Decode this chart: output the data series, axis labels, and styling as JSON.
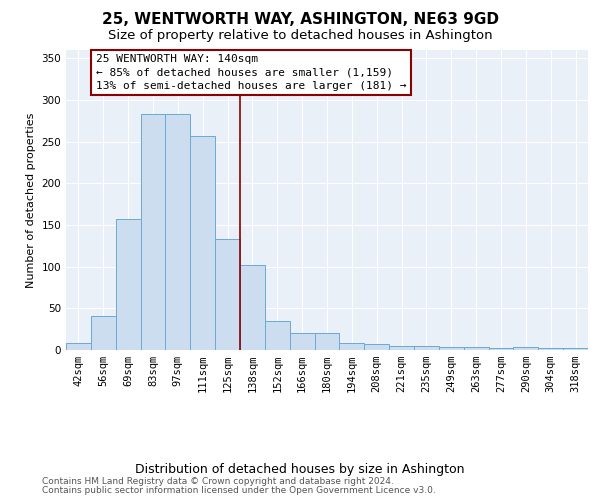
{
  "title": "25, WENTWORTH WAY, ASHINGTON, NE63 9GD",
  "subtitle": "Size of property relative to detached houses in Ashington",
  "xlabel": "Distribution of detached houses by size in Ashington",
  "ylabel": "Number of detached properties",
  "categories": [
    "42sqm",
    "56sqm",
    "69sqm",
    "83sqm",
    "97sqm",
    "111sqm",
    "125sqm",
    "138sqm",
    "152sqm",
    "166sqm",
    "180sqm",
    "194sqm",
    "208sqm",
    "221sqm",
    "235sqm",
    "249sqm",
    "263sqm",
    "277sqm",
    "290sqm",
    "304sqm",
    "318sqm"
  ],
  "values": [
    8,
    41,
    157,
    283,
    283,
    257,
    133,
    102,
    35,
    20,
    20,
    8,
    7,
    5,
    5,
    4,
    4,
    3,
    4,
    3,
    3
  ],
  "bar_color": "#ccddf0",
  "bar_edge_color": "#6aaad4",
  "background_color": "#eaf0f8",
  "grid_color": "#ffffff",
  "vline_x": 7.0,
  "vline_color": "#8b0000",
  "annotation_text": "25 WENTWORTH WAY: 140sqm\n← 85% of detached houses are smaller (1,159)\n13% of semi-detached houses are larger (181) →",
  "annotation_box_color": "#8b0000",
  "ylim": [
    0,
    360
  ],
  "yticks": [
    0,
    50,
    100,
    150,
    200,
    250,
    300,
    350
  ],
  "footer_line1": "Contains HM Land Registry data © Crown copyright and database right 2024.",
  "footer_line2": "Contains public sector information licensed under the Open Government Licence v3.0.",
  "title_fontsize": 11,
  "subtitle_fontsize": 9.5,
  "xlabel_fontsize": 9,
  "ylabel_fontsize": 8,
  "tick_fontsize": 7.5,
  "annotation_fontsize": 8,
  "footer_fontsize": 6.5
}
